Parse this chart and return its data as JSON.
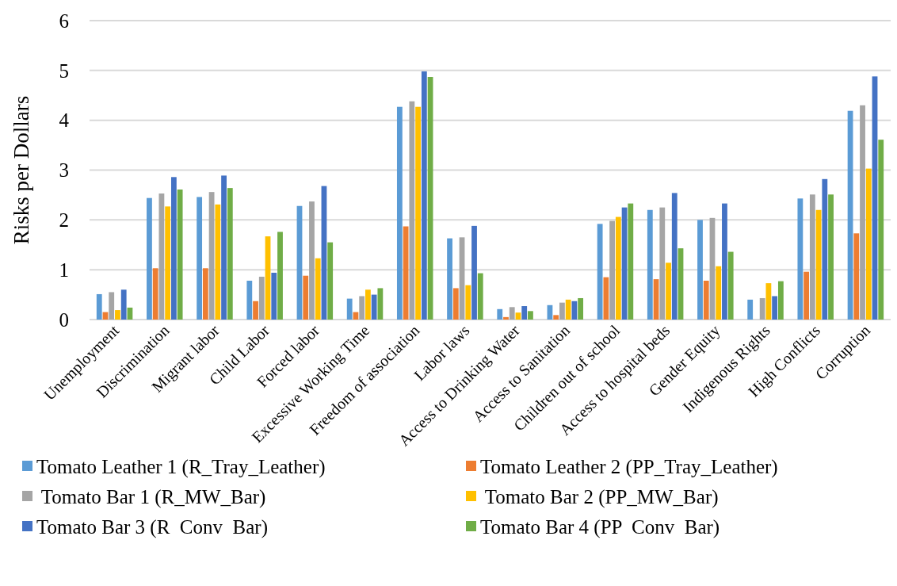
{
  "chart_data": {
    "type": "bar",
    "ylabel": "Risks per Dollars",
    "ylim": [
      0,
      6
    ],
    "yticks": [
      0,
      1,
      2,
      3,
      4,
      5,
      6
    ],
    "grid": "y",
    "legend": "bottom",
    "categories": [
      "Unemployment",
      "Discrimination",
      "Migrant labor",
      "Child Labor",
      "Forced labor",
      "Excessive Working Time",
      "Freedom of association",
      "Labor laws",
      "Access to Drinking Water",
      "Access to Sanitation",
      "Children out of school",
      "Access to hospital beds",
      "Gender Equity",
      "Indigenous Rights",
      "High Conflicts",
      "Corruption"
    ],
    "series": [
      {
        "name": "Tomato Leather 1 (R_Tray_Leather)",
        "color": "#5b9bd5",
        "values": [
          0.51,
          2.44,
          2.46,
          0.78,
          2.28,
          0.42,
          4.27,
          1.63,
          0.21,
          0.29,
          1.92,
          2.2,
          2.0,
          0.4,
          2.43,
          4.19
        ]
      },
      {
        "name": "Tomato Leather 2 (PP_Tray_Leather)",
        "color": "#ed7d31",
        "values": [
          0.15,
          1.03,
          1.03,
          0.37,
          0.88,
          0.15,
          1.87,
          0.63,
          0.05,
          0.09,
          0.85,
          0.81,
          0.78,
          null,
          0.96,
          1.73
        ]
      },
      {
        "name": " Tomato Bar 1 (R_MW_Bar)",
        "color": "#a5a5a5",
        "values": [
          0.55,
          2.53,
          2.56,
          0.86,
          2.37,
          0.47,
          4.38,
          1.65,
          0.25,
          0.34,
          1.98,
          2.25,
          2.04,
          0.43,
          2.51,
          4.3
        ]
      },
      {
        "name": " Tomato Bar 2 (PP_MW_Bar)",
        "color": "#ffc000",
        "values": [
          0.19,
          2.27,
          2.31,
          1.67,
          1.23,
          0.6,
          4.27,
          0.69,
          0.14,
          0.4,
          2.06,
          1.14,
          1.07,
          0.73,
          2.2,
          3.03
        ]
      },
      {
        "name": "Tomato Bar 3 (R  Conv  Bar)",
        "color": "#4472c4",
        "values": [
          0.6,
          2.86,
          2.89,
          0.94,
          2.68,
          0.5,
          4.98,
          1.88,
          0.27,
          0.37,
          2.25,
          2.54,
          2.33,
          0.47,
          2.82,
          4.88
        ]
      },
      {
        "name": "Tomato Bar 4 (PP  Conv  Bar)",
        "color": "#70ad47",
        "values": [
          0.24,
          2.61,
          2.64,
          1.76,
          1.55,
          0.63,
          4.87,
          0.93,
          0.17,
          0.43,
          2.33,
          1.43,
          1.36,
          0.77,
          2.51,
          3.61
        ]
      }
    ]
  }
}
